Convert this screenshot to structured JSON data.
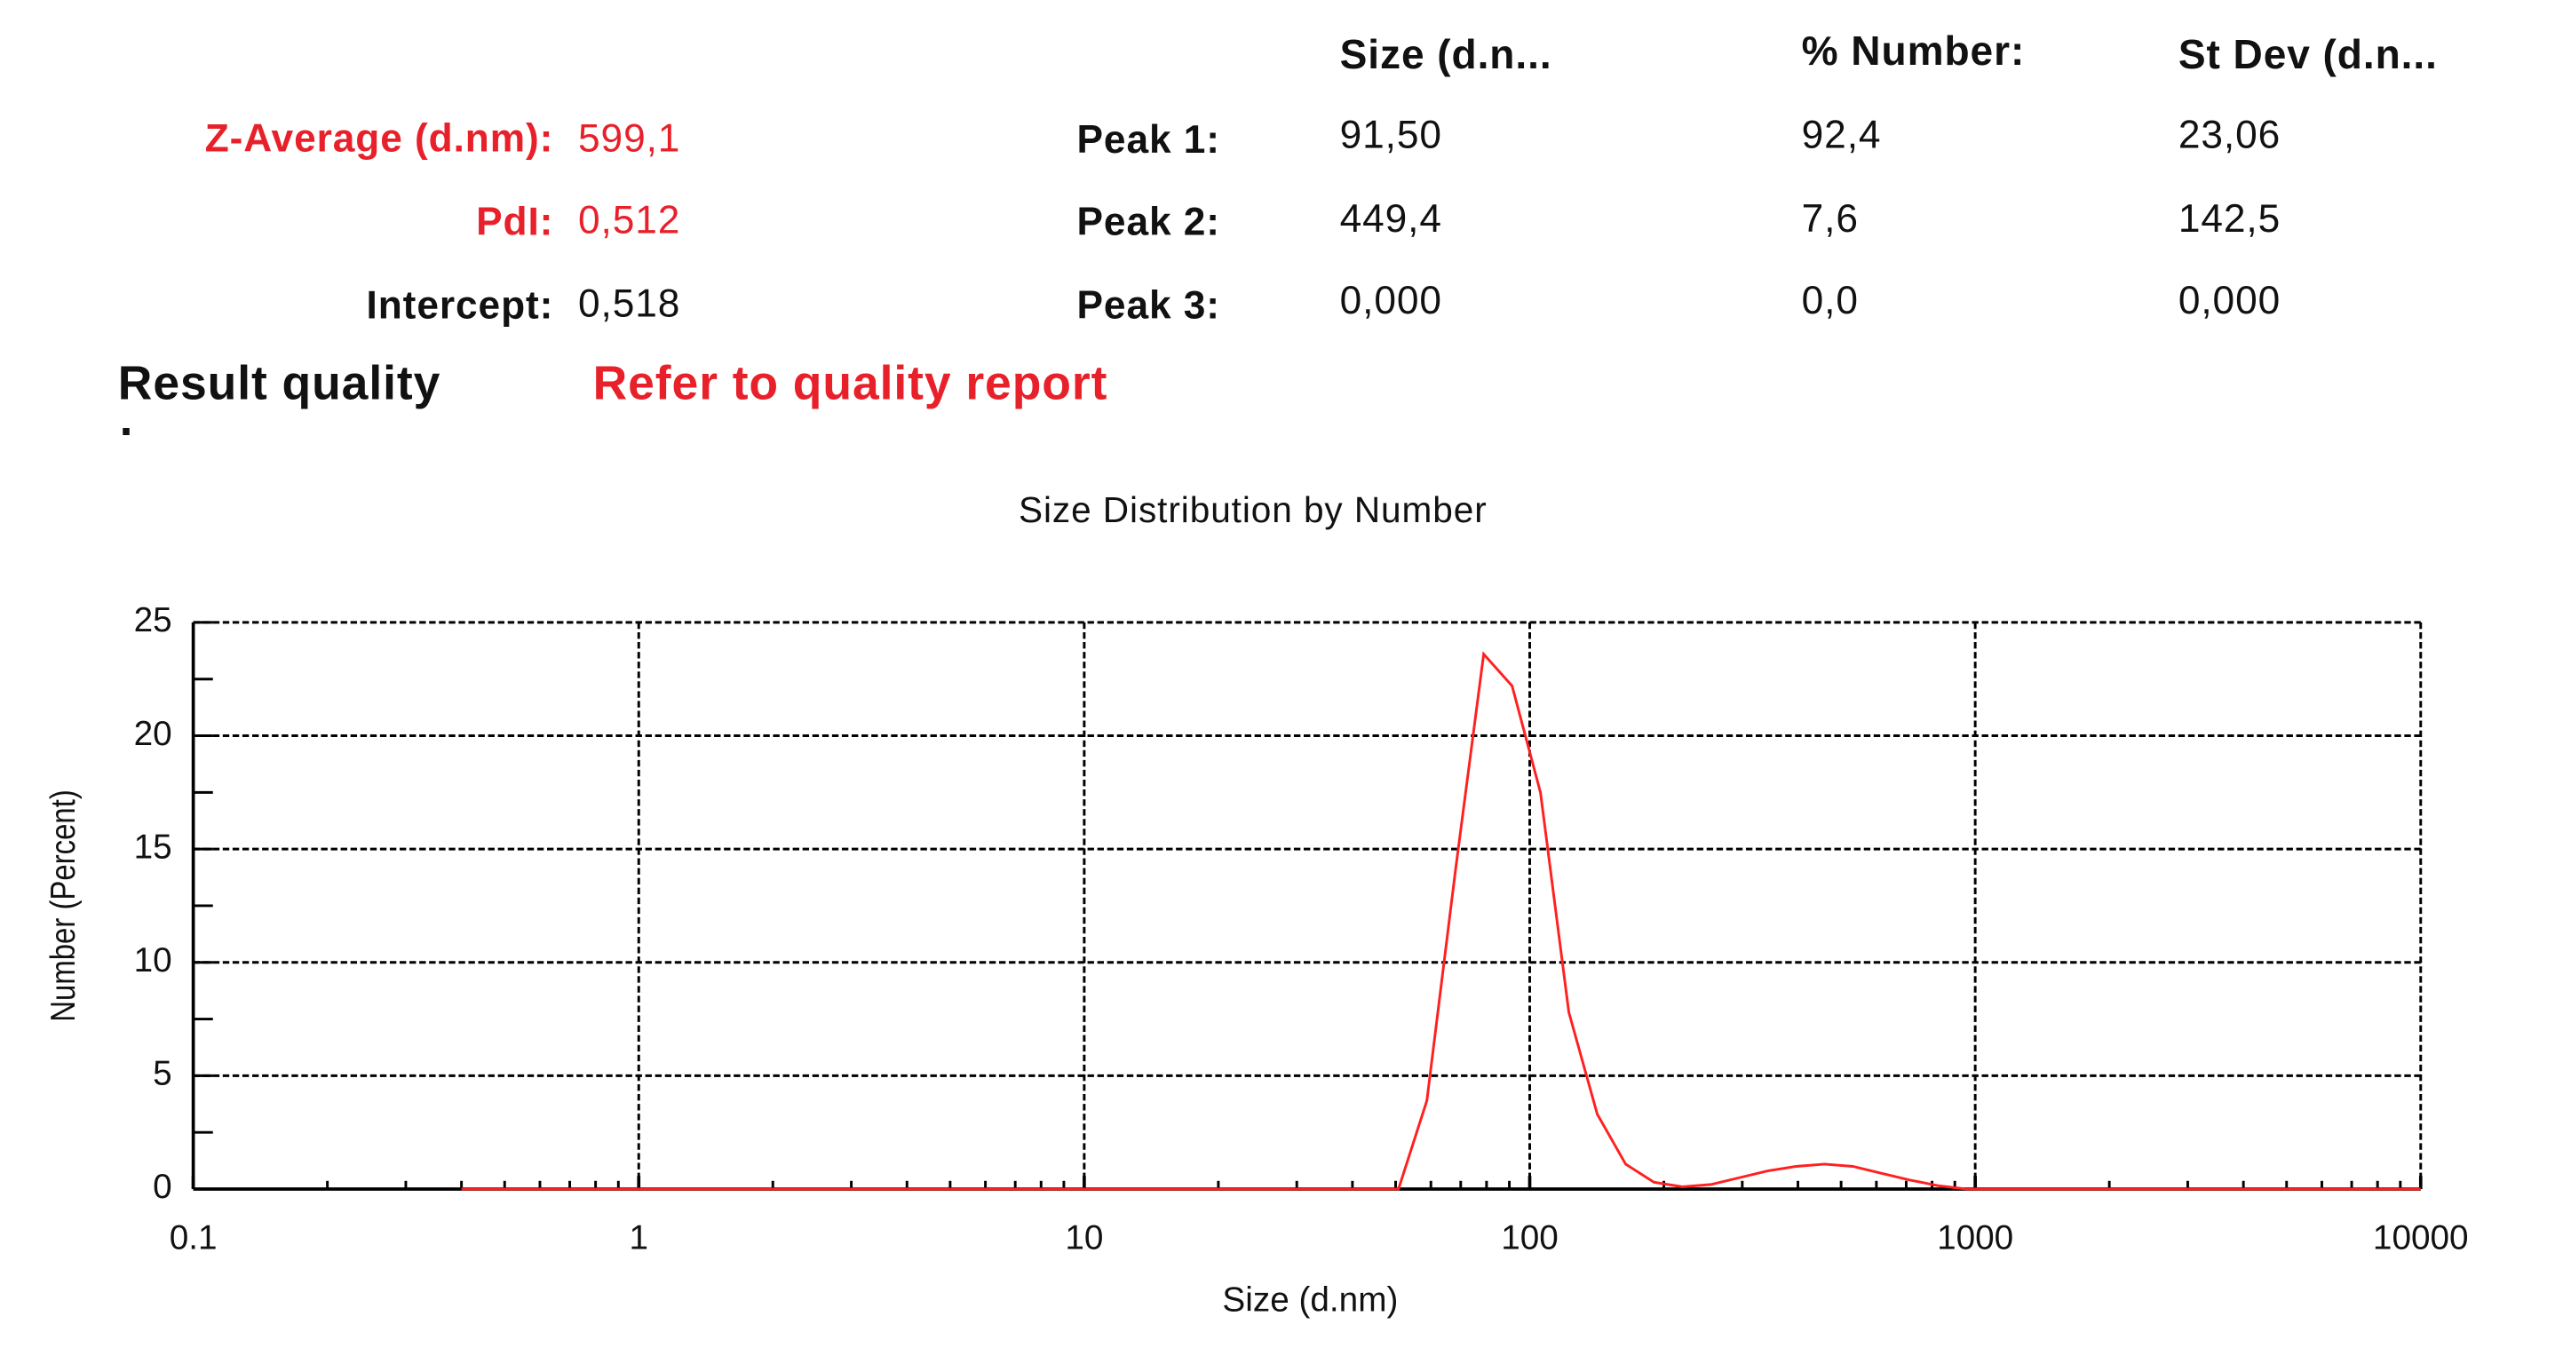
{
  "summary": {
    "rows": [
      {
        "label": "Z-Average (d.nm):",
        "value": "599,1"
      },
      {
        "label": "PdI:",
        "value": "0,512"
      },
      {
        "label": "Intercept:",
        "value": "0,518"
      }
    ],
    "quality_label": "Result quality",
    "quality": "Refer to quality report",
    "quality_mark": "."
  },
  "table": {
    "header": [
      "Size (d.n...",
      "% Number:",
      "St Dev (d.n..."
    ],
    "rows": [
      [
        "Peak 1:",
        "91,50",
        "92,4",
        "23,06"
      ],
      [
        "Peak 2:",
        "449,4",
        "7,6",
        "142,5"
      ],
      [
        "Peak 3:",
        "0,000",
        "0,0",
        "0,000"
      ]
    ]
  },
  "chart_data": {
    "type": "line",
    "title": "Size Distribution by Number",
    "xlabel": "Size (d.nm)",
    "ylabel": "Number (Percent)",
    "xscale": "log",
    "xlim": [
      0.1,
      10000
    ],
    "xticks": [
      0.1,
      1,
      10,
      100,
      1000,
      10000
    ],
    "xminorticks": [
      0.2,
      0.3,
      0.4,
      0.5,
      0.6,
      0.7,
      0.8,
      0.9,
      2,
      3,
      4,
      5,
      6,
      7,
      8,
      9,
      20,
      30,
      40,
      50,
      60,
      70,
      80,
      90,
      200,
      300,
      400,
      500,
      600,
      700,
      800,
      900,
      2000,
      3000,
      4000,
      5000,
      6000,
      7000,
      8000,
      9000
    ],
    "ylim": [
      0,
      25
    ],
    "yticks": [
      0,
      5,
      10,
      15,
      20,
      25
    ],
    "yminorticks": [
      2.5,
      7.5,
      12.5,
      17.5,
      22.5
    ],
    "grid": true,
    "color": "#ff2020",
    "x": [
      0.4,
      43.82,
      50.75,
      58.77,
      68.06,
      78.82,
      91.28,
      105.7,
      122.4,
      141.8,
      164.2,
      190.1,
      220.2,
      255.0,
      295.3,
      342.0,
      396.1,
      458.7,
      531.2,
      615.1,
      712.4,
      825.0,
      955.4,
      10000
    ],
    "values": [
      0,
      0,
      0,
      3.9,
      14,
      23.6,
      22.2,
      17.5,
      7.8,
      3.3,
      1.1,
      0.3,
      0.1,
      0.2,
      0.5,
      0.8,
      1.0,
      1.1,
      1.0,
      0.7,
      0.4,
      0.15,
      0,
      0
    ]
  }
}
